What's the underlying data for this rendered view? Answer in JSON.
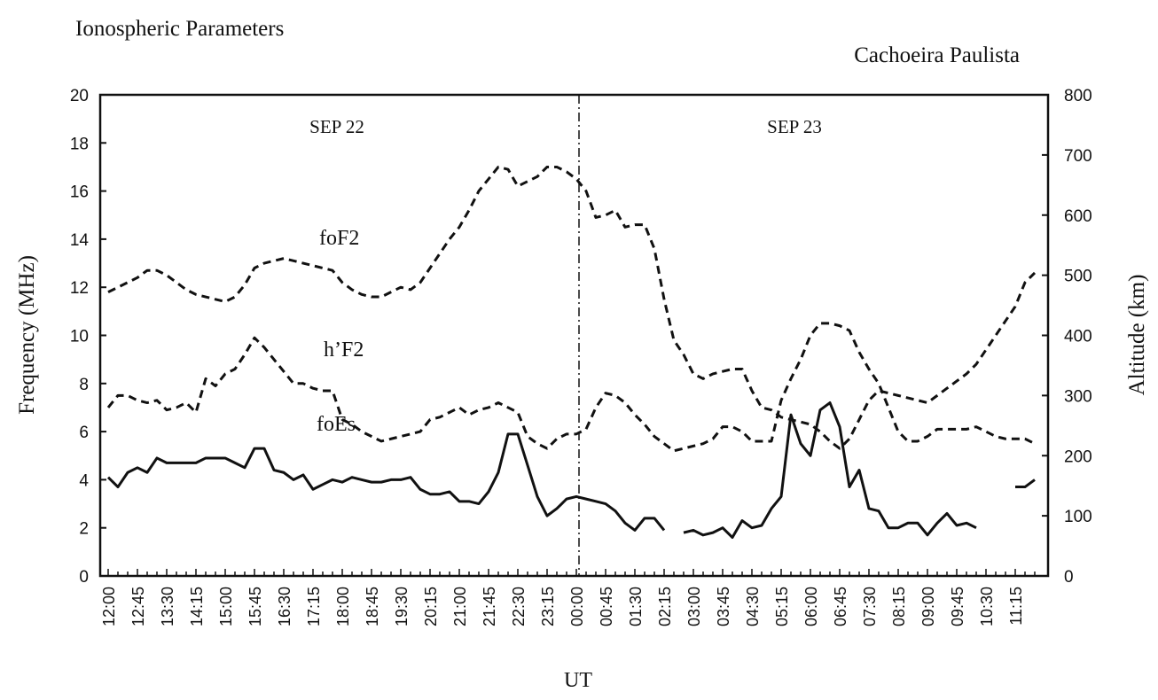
{
  "chart_data": {
    "type": "line",
    "title": "Ionospheric Parameters",
    "subtitle": "Cachoeira Paulista",
    "x_label": "UT",
    "y_label": "Frequency (MHz)",
    "y2_label": "Altitude (km)",
    "annotations": [
      "SEP 22",
      "SEP 23"
    ],
    "categories": [
      "12:00",
      null,
      null,
      "12:45",
      null,
      null,
      "13:30",
      null,
      null,
      "14:15",
      null,
      null,
      "15:00",
      null,
      null,
      "15:45",
      null,
      null,
      "16:30",
      null,
      null,
      "17:15",
      null,
      null,
      "18:00",
      null,
      null,
      "18:45",
      null,
      null,
      "19:30",
      null,
      null,
      "20:15",
      null,
      null,
      "21:00",
      null,
      null,
      "21:45",
      null,
      null,
      "22:30",
      null,
      null,
      "23:15",
      null,
      null,
      "00:00",
      null,
      null,
      "00:45",
      null,
      null,
      "01:30",
      null,
      null,
      "02:15",
      null,
      null,
      "03:00",
      null,
      null,
      "03:45",
      null,
      null,
      "04:30",
      null,
      null,
      "05:15",
      null,
      null,
      "06:00",
      null,
      null,
      "06:45",
      null,
      null,
      "07:30",
      null,
      null,
      "08:15",
      null,
      null,
      "09:00",
      null,
      null,
      "09:45",
      null,
      null,
      "10:30",
      null,
      null,
      "11:15",
      null,
      null
    ],
    "ylim": [
      0,
      20
    ],
    "yticks": [
      0,
      2,
      4,
      6,
      8,
      10,
      12,
      14,
      16,
      18,
      20
    ],
    "y2lim": [
      0,
      800
    ],
    "y2ticks": [
      0,
      100,
      200,
      300,
      400,
      500,
      600,
      700,
      800
    ],
    "grid": false,
    "series": [
      {
        "name": "foF2",
        "color": "#111111",
        "dash": true,
        "values": [
          11.8,
          12.0,
          12.2,
          12.4,
          12.7,
          12.7,
          12.5,
          12.2,
          11.9,
          11.7,
          11.6,
          11.5,
          11.4,
          11.6,
          12.1,
          12.8,
          13.0,
          13.1,
          13.2,
          13.1,
          13.0,
          12.9,
          12.8,
          12.7,
          12.2,
          11.9,
          11.7,
          11.6,
          11.6,
          11.8,
          12.0,
          11.9,
          12.2,
          12.8,
          13.4,
          14.0,
          14.5,
          15.2,
          16.0,
          16.5,
          17.0,
          16.9,
          16.2,
          16.4,
          16.6,
          17.0,
          17.0,
          16.8,
          16.5,
          16.0,
          14.9,
          15.0,
          15.2,
          14.5,
          14.6,
          14.6,
          13.6,
          11.5,
          9.8,
          9.2,
          8.4,
          8.2,
          8.4,
          8.5,
          8.6,
          8.6,
          7.7,
          7.0,
          6.9,
          6.6,
          6.5,
          6.4,
          6.3,
          6.0,
          5.6,
          5.3,
          5.7,
          6.5,
          7.3,
          7.7,
          7.6,
          7.5,
          7.4,
          7.3,
          7.2,
          7.5,
          7.8,
          8.1,
          8.4,
          8.8,
          9.4,
          10.0,
          10.6,
          11.2,
          12.2,
          12.6
        ]
      },
      {
        "name": "h’F2",
        "color": "#111111",
        "dash": true,
        "axis": "y2",
        "values": [
          280,
          300,
          300,
          292,
          288,
          292,
          276,
          280,
          288,
          272,
          328,
          316,
          336,
          344,
          368,
          396,
          380,
          360,
          340,
          320,
          320,
          312,
          308,
          308,
          260,
          252,
          240,
          232,
          224,
          228,
          232,
          236,
          240,
          260,
          264,
          272,
          280,
          268,
          276,
          280,
          288,
          280,
          272,
          232,
          220,
          212,
          228,
          236,
          236,
          244,
          280,
          304,
          300,
          288,
          268,
          252,
          232,
          220,
          208,
          212,
          216,
          220,
          228,
          248,
          248,
          240,
          224,
          224,
          224,
          292,
          328,
          360,
          400,
          420,
          420,
          416,
          408,
          372,
          344,
          320,
          280,
          240,
          224,
          224,
          232,
          244,
          244,
          244,
          244,
          248,
          240,
          232,
          228,
          228,
          228,
          220
        ]
      },
      {
        "name": "foEs",
        "color": "#111111",
        "dash": false,
        "values": [
          4.1,
          3.7,
          4.3,
          4.5,
          4.3,
          4.9,
          4.7,
          4.7,
          4.7,
          4.7,
          4.9,
          4.9,
          4.9,
          4.7,
          4.5,
          5.3,
          5.3,
          4.4,
          4.3,
          4.0,
          4.2,
          3.6,
          3.8,
          4.0,
          3.9,
          4.1,
          4.0,
          3.9,
          3.9,
          4.0,
          4.0,
          4.1,
          3.6,
          3.4,
          3.4,
          3.5,
          3.1,
          3.1,
          3.0,
          3.5,
          4.3,
          5.9,
          5.9,
          4.6,
          3.3,
          2.5,
          2.8,
          3.2,
          3.3,
          3.2,
          3.1,
          3.0,
          2.7,
          2.2,
          1.9,
          2.4,
          2.4,
          1.9,
          null,
          1.8,
          1.9,
          1.7,
          1.8,
          2.0,
          1.6,
          2.3,
          2.0,
          2.1,
          2.8,
          3.3,
          6.7,
          5.5,
          5.0,
          6.9,
          7.2,
          6.2,
          3.7,
          4.4,
          2.8,
          2.7,
          2.0,
          2.0,
          2.2,
          2.2,
          1.7,
          2.2,
          2.6,
          2.1,
          2.2,
          2.0,
          null,
          null,
          null,
          3.7,
          3.7,
          4.0
        ]
      }
    ]
  }
}
